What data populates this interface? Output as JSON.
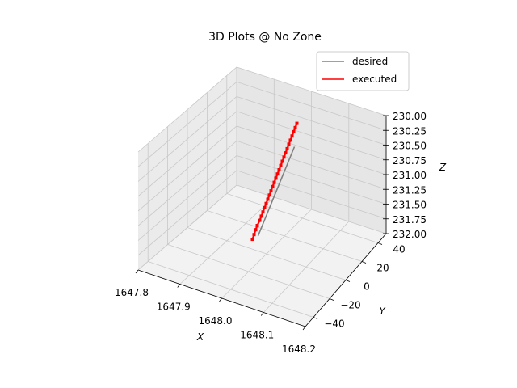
{
  "chart_data": {
    "type": "line3d",
    "title": "3D Plots @ No Zone",
    "xlabel": "X",
    "ylabel": "Y",
    "zlabel": "Z",
    "xlim": [
      1647.8,
      1648.2
    ],
    "ylim": [
      -50,
      50
    ],
    "zlim": [
      232.0,
      230.0
    ],
    "x_ticks": [
      "1647.8",
      "1647.9",
      "1648.0",
      "1648.1",
      "1648.2"
    ],
    "y_ticks": [
      "−40",
      "−20",
      "0",
      "20",
      "40"
    ],
    "z_ticks": [
      "230.00",
      "230.25",
      "230.50",
      "230.75",
      "231.00",
      "231.25",
      "231.50",
      "231.75",
      "232.00"
    ],
    "legend_position": "top-right",
    "grid": true,
    "series": [
      {
        "name": "desired",
        "color": "#808080",
        "x": [
          1648.0,
          1648.0
        ],
        "y": [
          -5,
          40
        ],
        "z": [
          231.65,
          230.85
        ]
      },
      {
        "name": "executed",
        "color": "#ff0000",
        "x": [
          1648.0,
          1648.0,
          1648.0,
          1648.0,
          1648.0,
          1648.0,
          1648.0,
          1648.0,
          1648.0,
          1648.0,
          1648.0,
          1648.0,
          1648.0,
          1648.0,
          1648.0,
          1648.0,
          1648.0,
          1648.0,
          1648.0,
          1648.0,
          1648.0,
          1648.0,
          1648.0,
          1648.0,
          1648.0,
          1648.0,
          1648.0,
          1648.0
        ],
        "y": [
          -12,
          -10,
          -8,
          -6,
          -3,
          -1,
          1,
          3,
          5,
          7,
          9,
          11,
          13,
          15,
          17,
          19,
          21,
          23,
          25,
          27,
          29,
          31,
          33,
          35,
          37,
          39,
          41,
          43
        ],
        "z": [
          231.6,
          231.55,
          231.5,
          231.46,
          231.42,
          231.38,
          231.34,
          231.3,
          231.26,
          231.22,
          231.18,
          231.14,
          231.1,
          231.06,
          231.02,
          230.98,
          230.94,
          230.9,
          230.86,
          230.82,
          230.78,
          230.74,
          230.7,
          230.66,
          230.62,
          230.58,
          230.54,
          230.5
        ]
      }
    ]
  }
}
